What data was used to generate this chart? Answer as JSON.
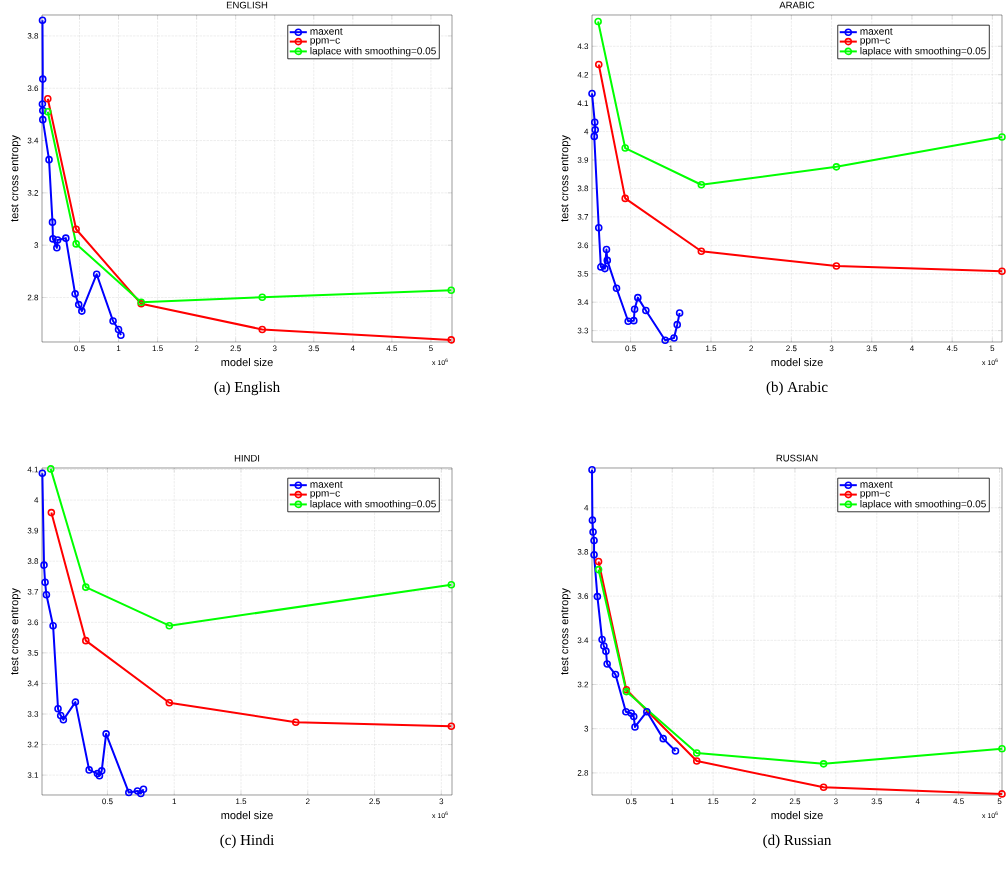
{
  "chart_data": [
    {
      "type": "line",
      "title": "ENGLISH",
      "xlabel": "model size",
      "ylabel": "test cross entropy",
      "annotations": [
        "x 10$^{6}$",
        "(a) English"
      ],
      "xlim": [
        0.02,
        5.27
      ],
      "ylim": [
        2.63,
        3.88
      ],
      "xticks": [
        0.5,
        1,
        1.5,
        2,
        2.5,
        3,
        3.5,
        4,
        4.5,
        5
      ],
      "yticks": [
        2.8,
        3,
        3.2,
        3.4,
        3.6,
        3.8
      ],
      "grid": true,
      "legend": "top right",
      "marker": "circle",
      "line_style": "solid",
      "series": [
        {
          "name": "maxent",
          "color": "#0000ff",
          "x": [
            0.026,
            0.03,
            0.025,
            0.03,
            0.03,
            0.11,
            0.154,
            0.16,
            0.21,
            0.22,
            0.325,
            0.444,
            0.49,
            0.53,
            0.72,
            0.93,
            1.0,
            1.03
          ],
          "values": [
            3.86,
            3.635,
            3.54,
            3.515,
            3.48,
            3.327,
            3.088,
            3.024,
            2.99,
            3.02,
            3.027,
            2.814,
            2.773,
            2.748,
            2.889,
            2.71,
            2.678,
            2.656
          ]
        },
        {
          "name": "ppm−c",
          "color": "#ff0000",
          "x": [
            0.094,
            0.457,
            1.29,
            2.84,
            5.26
          ],
          "values": [
            3.56,
            3.061,
            2.776,
            2.678,
            2.638
          ]
        },
        {
          "name": "laplace with smoothing=0.05",
          "color": "#00ff00",
          "x": [
            0.094,
            0.457,
            1.29,
            2.84,
            5.26
          ],
          "values": [
            3.51,
            3.005,
            2.782,
            2.801,
            2.828
          ]
        }
      ]
    },
    {
      "type": "line",
      "title": "ARABIC",
      "xlabel": "model size",
      "ylabel": "test cross entropy",
      "annotations": [
        "x 10$^{6}$",
        "(b) Arabic"
      ],
      "xlim": [
        0.02,
        5.12
      ],
      "ylim": [
        3.26,
        4.41
      ],
      "xticks": [
        0.5,
        1,
        1.5,
        2,
        2.5,
        3,
        3.5,
        4,
        4.5,
        5
      ],
      "yticks": [
        3.3,
        3.4,
        3.5,
        3.6,
        3.7,
        3.8,
        3.9,
        4,
        4.1,
        4.2,
        4.3
      ],
      "grid": true,
      "legend": "top right",
      "marker": "circle",
      "line_style": "solid",
      "series": [
        {
          "name": "maxent",
          "color": "#0000ff",
          "x": [
            0.02,
            0.054,
            0.06,
            0.048,
            0.104,
            0.13,
            0.18,
            0.2,
            0.21,
            0.325,
            0.47,
            0.54,
            0.55,
            0.59,
            0.69,
            0.93,
            1.04,
            1.08,
            1.11
          ],
          "values": [
            4.134,
            4.033,
            4.006,
            3.983,
            3.662,
            3.524,
            3.518,
            3.585,
            3.547,
            3.449,
            3.333,
            3.335,
            3.375,
            3.416,
            3.371,
            3.266,
            3.274,
            3.321,
            3.362
          ]
        },
        {
          "name": "ppm−c",
          "color": "#ff0000",
          "x": [
            0.104,
            0.433,
            1.38,
            3.06,
            5.12
          ],
          "values": [
            4.236,
            3.765,
            3.579,
            3.527,
            3.509
          ]
        },
        {
          "name": "laplace with smoothing=0.05",
          "color": "#00ff00",
          "x": [
            0.096,
            0.433,
            1.38,
            3.06,
            5.12
          ],
          "values": [
            4.387,
            3.942,
            3.813,
            3.876,
            3.981
          ]
        }
      ]
    },
    {
      "type": "line",
      "title": "HINDI",
      "xlabel": "model size",
      "ylabel": "test cross entropy",
      "annotations": [
        "x 10$^{6}$",
        "(c) Hindi"
      ],
      "xlim": [
        0.01,
        3.08
      ],
      "ylim": [
        3.035,
        4.105
      ],
      "xticks": [
        0.5,
        1,
        1.5,
        2,
        2.5,
        3
      ],
      "yticks": [
        3.1,
        3.2,
        3.3,
        3.4,
        3.5,
        3.6,
        3.7,
        3.8,
        3.9,
        4,
        4.1
      ],
      "grid": true,
      "legend": "top right",
      "marker": "circle",
      "line_style": "solid",
      "series": [
        {
          "name": "maxent",
          "color": "#0000ff",
          "x": [
            0.0125,
            0.025,
            0.033,
            0.043,
            0.093,
            0.13,
            0.15,
            0.17,
            0.26,
            0.363,
            0.425,
            0.44,
            0.457,
            0.49,
            0.66,
            0.725,
            0.75,
            0.77
          ],
          "values": [
            4.088,
            3.787,
            3.731,
            3.69,
            3.589,
            3.317,
            3.295,
            3.281,
            3.339,
            3.117,
            3.105,
            3.098,
            3.114,
            3.235,
            3.043,
            3.048,
            3.04,
            3.054
          ]
        },
        {
          "name": "ppm−c",
          "color": "#ff0000",
          "x": [
            0.08,
            0.338,
            0.963,
            1.91,
            3.075
          ],
          "values": [
            3.959,
            3.54,
            3.337,
            3.273,
            3.26
          ]
        },
        {
          "name": "laplace with smoothing=0.05",
          "color": "#00ff00",
          "x": [
            0.075,
            0.338,
            0.963,
            3.075
          ],
          "values": [
            4.102,
            3.715,
            3.589,
            3.723
          ]
        }
      ]
    },
    {
      "type": "line",
      "title": "RUSSIAN",
      "xlabel": "model size",
      "ylabel": "test cross entropy",
      "annotations": [
        "x 10$^{6}$",
        "(d) Russian"
      ],
      "xlim": [
        0.02,
        5.03
      ],
      "ylim": [
        2.7,
        4.18
      ],
      "xticks": [
        0.5,
        1,
        1.5,
        2,
        2.5,
        3,
        3.5,
        4,
        4.5,
        5
      ],
      "yticks": [
        2.8,
        3,
        3.2,
        3.4,
        3.6,
        3.8,
        4
      ],
      "grid": true,
      "legend": "top right",
      "marker": "circle",
      "line_style": "solid",
      "series": [
        {
          "name": "maxent",
          "color": "#0000ff",
          "x": [
            0.02,
            0.025,
            0.033,
            0.045,
            0.045,
            0.086,
            0.143,
            0.165,
            0.19,
            0.205,
            0.307,
            0.434,
            0.5,
            0.53,
            0.545,
            0.69,
            0.89,
            1.04
          ],
          "values": [
            4.172,
            3.944,
            3.89,
            3.852,
            3.787,
            3.598,
            3.404,
            3.374,
            3.351,
            3.293,
            3.245,
            3.077,
            3.07,
            3.055,
            3.008,
            3.077,
            2.955,
            2.899
          ]
        },
        {
          "name": "ppm−c",
          "color": "#ff0000",
          "x": [
            0.1,
            0.44,
            1.3,
            2.85,
            5.03
          ],
          "values": [
            3.757,
            3.176,
            2.854,
            2.735,
            2.705
          ]
        },
        {
          "name": "laplace with smoothing=0.05",
          "color": "#00ff00",
          "x": [
            0.1,
            0.44,
            1.3,
            2.85,
            5.03
          ],
          "values": [
            3.72,
            3.168,
            2.89,
            2.841,
            2.909
          ]
        }
      ]
    }
  ]
}
